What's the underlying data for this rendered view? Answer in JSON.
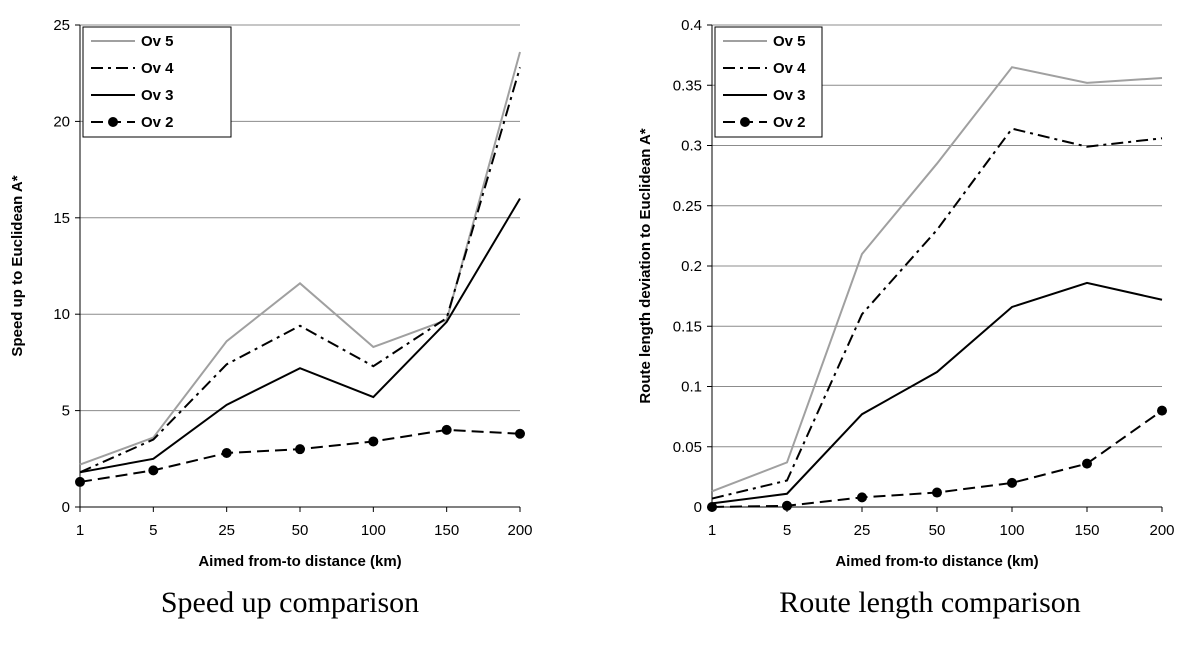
{
  "chart_data": [
    {
      "type": "line",
      "title": "",
      "caption": "Speed up comparison",
      "xlabel": "Aimed from-to distance (km)",
      "ylabel": "Speed up to Euclidean A*",
      "categories": [
        "1",
        "5",
        "25",
        "50",
        "100",
        "150",
        "200"
      ],
      "ylim": [
        0,
        25
      ],
      "yticks": [
        "0",
        "5",
        "10",
        "15",
        "20",
        "25"
      ],
      "grid": "horizontal",
      "legend_position": "top-left",
      "series": [
        {
          "name": "Ov 5",
          "values": [
            2.2,
            3.6,
            8.6,
            11.6,
            8.3,
            9.7,
            23.6
          ],
          "color": "#a0a0a0",
          "dash": "",
          "marker": false
        },
        {
          "name": "Ov 4",
          "values": [
            1.8,
            3.5,
            7.4,
            9.4,
            7.3,
            9.8,
            22.8
          ],
          "color": "#000000",
          "dash": "12,5,3,5",
          "marker": false
        },
        {
          "name": "Ov 3",
          "values": [
            1.8,
            2.5,
            5.3,
            7.2,
            5.7,
            9.6,
            16.0
          ],
          "color": "#000000",
          "dash": "",
          "marker": false
        },
        {
          "name": "Ov 2",
          "values": [
            1.3,
            1.9,
            2.8,
            3.0,
            3.4,
            4.0,
            3.8
          ],
          "color": "#000000",
          "dash": "12,6",
          "marker": true
        }
      ]
    },
    {
      "type": "line",
      "title": "",
      "caption": "Route length comparison",
      "xlabel": "Aimed from-to distance (km)",
      "ylabel": "Route length deviation to Euclidean A*",
      "categories": [
        "1",
        "5",
        "25",
        "50",
        "100",
        "150",
        "200"
      ],
      "ylim": [
        0,
        0.4
      ],
      "yticks": [
        "0",
        "0.05",
        "0.1",
        "0.15",
        "0.2",
        "0.25",
        "0.3",
        "0.35",
        "0.4"
      ],
      "grid": "horizontal",
      "legend_position": "top-left",
      "series": [
        {
          "name": "Ov 5",
          "values": [
            0.013,
            0.037,
            0.21,
            0.285,
            0.365,
            0.352,
            0.356
          ],
          "color": "#a0a0a0",
          "dash": "",
          "marker": false
        },
        {
          "name": "Ov 4",
          "values": [
            0.007,
            0.022,
            0.16,
            0.23,
            0.314,
            0.299,
            0.306
          ],
          "color": "#000000",
          "dash": "12,5,3,5",
          "marker": false
        },
        {
          "name": "Ov 3",
          "values": [
            0.003,
            0.011,
            0.077,
            0.112,
            0.166,
            0.186,
            0.172
          ],
          "color": "#000000",
          "dash": "",
          "marker": false
        },
        {
          "name": "Ov 2",
          "values": [
            0.0,
            0.001,
            0.008,
            0.012,
            0.02,
            0.036,
            0.08
          ],
          "color": "#000000",
          "dash": "12,6",
          "marker": true
        }
      ]
    }
  ]
}
